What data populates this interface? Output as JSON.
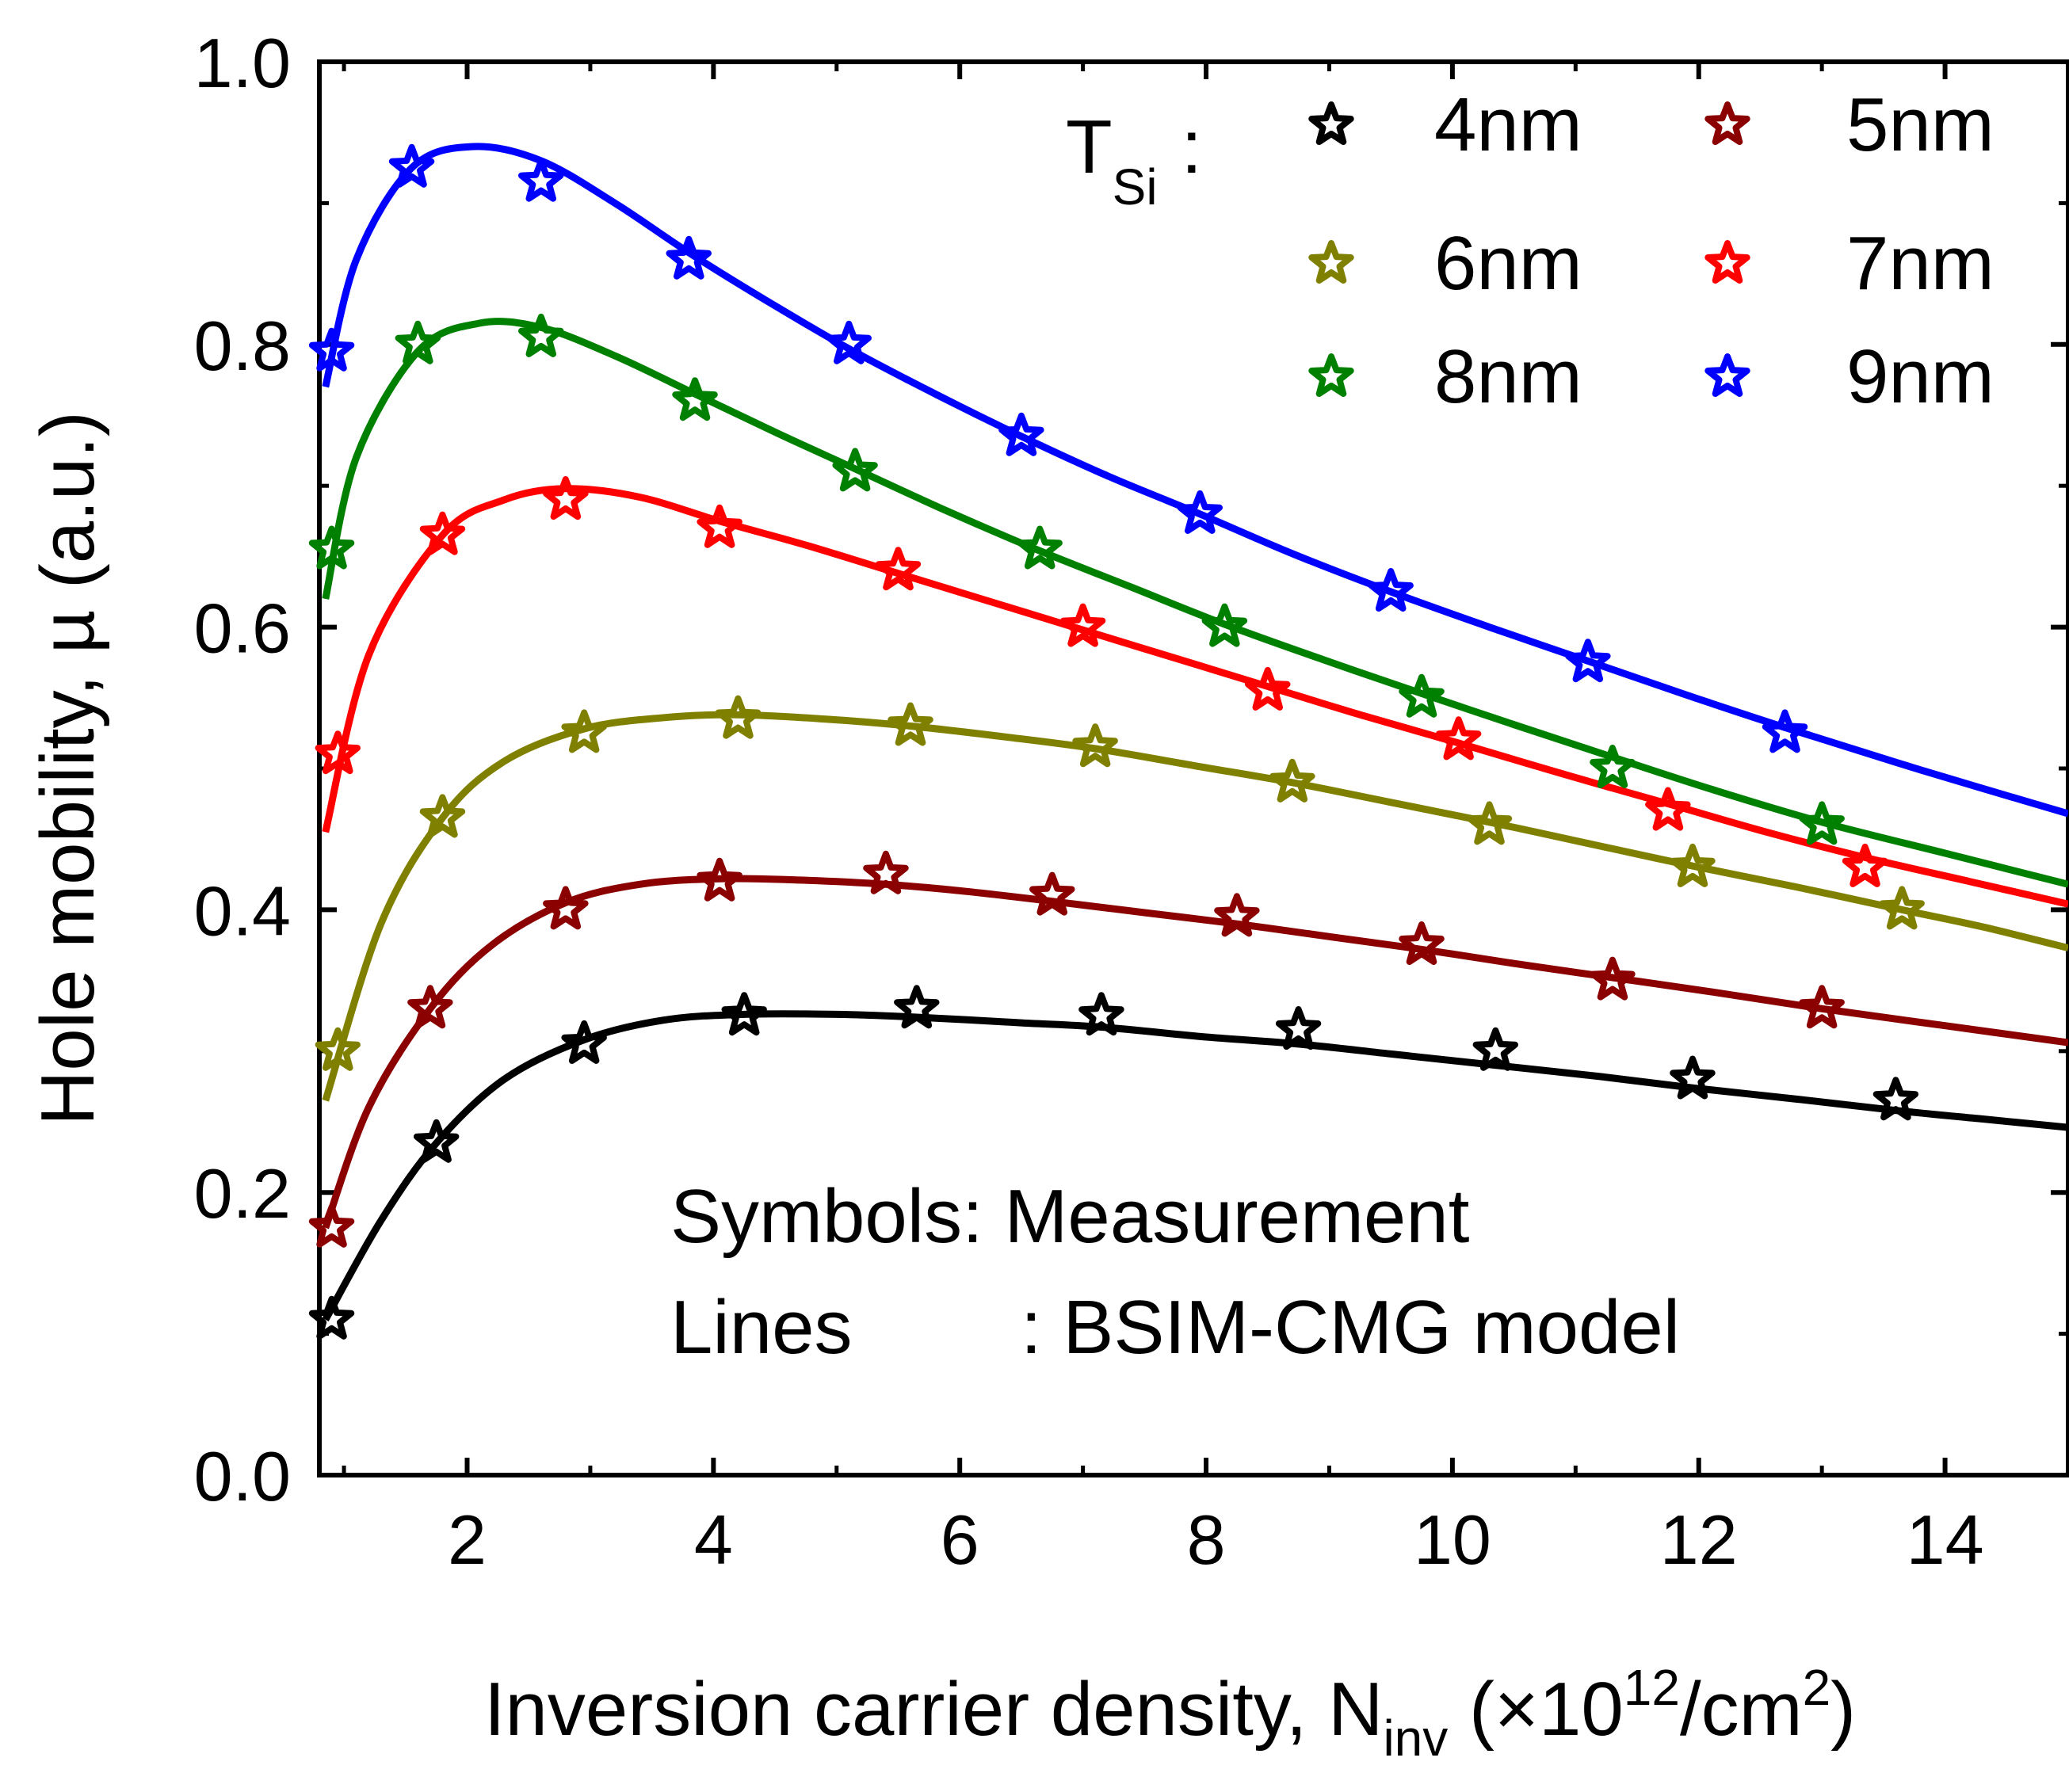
{
  "chart_data": {
    "type": "line",
    "xlabel": {
      "main": "Inversion carrier density, N",
      "sub": "inv",
      "tail1": " (×10",
      "sup1": "12",
      "tail2": "/cm",
      "sup2": "2",
      "tail3": ")"
    },
    "ylabel": "Hole mobility, µ (a.u.)",
    "xlim": [
      0.8,
      15.0
    ],
    "ylim": [
      0.0,
      1.0
    ],
    "xticks": [
      "2",
      "4",
      "6",
      "8",
      "10",
      "12",
      "14"
    ],
    "yticks": [
      "0.0",
      "0.2",
      "0.4",
      "0.6",
      "0.8",
      "1.0"
    ],
    "legend": {
      "title_main": "T",
      "title_sub": "Si",
      "title_colon": ":",
      "placement": "top-right"
    },
    "annotations": {
      "line1": "Symbols: Measurement",
      "line2_label": "Lines",
      "line2_value": ": BSIM-CMG model"
    },
    "series": [
      {
        "name": "4nm",
        "color": "#000000",
        "markers": [
          [
            0.9,
            0.11
          ],
          [
            1.75,
            0.235
          ],
          [
            2.95,
            0.305
          ],
          [
            4.25,
            0.325
          ],
          [
            5.65,
            0.33
          ],
          [
            7.15,
            0.325
          ],
          [
            8.75,
            0.315
          ],
          [
            10.35,
            0.3
          ],
          [
            11.95,
            0.28
          ],
          [
            13.6,
            0.265
          ]
        ],
        "curve": [
          [
            0.85,
            0.11
          ],
          [
            1.3,
            0.18
          ],
          [
            1.75,
            0.235
          ],
          [
            2.3,
            0.28
          ],
          [
            2.95,
            0.308
          ],
          [
            3.6,
            0.322
          ],
          [
            4.25,
            0.326
          ],
          [
            5.0,
            0.326
          ],
          [
            5.65,
            0.324
          ],
          [
            6.5,
            0.32
          ],
          [
            7.15,
            0.317
          ],
          [
            8.0,
            0.31
          ],
          [
            8.75,
            0.305
          ],
          [
            9.5,
            0.298
          ],
          [
            10.35,
            0.29
          ],
          [
            11.2,
            0.282
          ],
          [
            11.95,
            0.274
          ],
          [
            12.8,
            0.266
          ],
          [
            13.6,
            0.258
          ],
          [
            14.3,
            0.252
          ],
          [
            15.0,
            0.246
          ]
        ]
      },
      {
        "name": "5nm",
        "color": "#8b0000",
        "markers": [
          [
            0.9,
            0.175
          ],
          [
            1.7,
            0.33
          ],
          [
            2.8,
            0.4
          ],
          [
            4.05,
            0.42
          ],
          [
            5.4,
            0.425
          ],
          [
            6.75,
            0.41
          ],
          [
            8.25,
            0.395
          ],
          [
            9.75,
            0.375
          ],
          [
            11.3,
            0.35
          ],
          [
            13.0,
            0.33
          ]
        ],
        "curve": [
          [
            0.85,
            0.175
          ],
          [
            1.2,
            0.26
          ],
          [
            1.7,
            0.33
          ],
          [
            2.2,
            0.375
          ],
          [
            2.8,
            0.405
          ],
          [
            3.4,
            0.418
          ],
          [
            4.05,
            0.422
          ],
          [
            4.7,
            0.421
          ],
          [
            5.4,
            0.418
          ],
          [
            6.05,
            0.413
          ],
          [
            6.75,
            0.406
          ],
          [
            7.5,
            0.398
          ],
          [
            8.25,
            0.39
          ],
          [
            9.0,
            0.381
          ],
          [
            9.75,
            0.372
          ],
          [
            10.5,
            0.362
          ],
          [
            11.3,
            0.352
          ],
          [
            12.1,
            0.342
          ],
          [
            13.0,
            0.33
          ],
          [
            14.0,
            0.318
          ],
          [
            15.0,
            0.306
          ]
        ]
      },
      {
        "name": "6nm",
        "color": "#808000",
        "markers": [
          [
            0.95,
            0.3
          ],
          [
            1.8,
            0.465
          ],
          [
            2.95,
            0.525
          ],
          [
            4.2,
            0.535
          ],
          [
            5.6,
            0.53
          ],
          [
            7.1,
            0.515
          ],
          [
            8.7,
            0.49
          ],
          [
            10.3,
            0.46
          ],
          [
            11.95,
            0.43
          ],
          [
            13.65,
            0.4
          ]
        ],
        "curve": [
          [
            0.85,
            0.265
          ],
          [
            1.3,
            0.39
          ],
          [
            1.8,
            0.465
          ],
          [
            2.3,
            0.505
          ],
          [
            2.95,
            0.528
          ],
          [
            3.6,
            0.536
          ],
          [
            4.2,
            0.538
          ],
          [
            4.9,
            0.535
          ],
          [
            5.6,
            0.53
          ],
          [
            6.4,
            0.522
          ],
          [
            7.1,
            0.514
          ],
          [
            7.9,
            0.502
          ],
          [
            8.7,
            0.49
          ],
          [
            9.5,
            0.476
          ],
          [
            10.3,
            0.462
          ],
          [
            11.1,
            0.447
          ],
          [
            11.95,
            0.431
          ],
          [
            12.8,
            0.416
          ],
          [
            13.65,
            0.4
          ],
          [
            14.3,
            0.388
          ],
          [
            15.0,
            0.373
          ]
        ]
      },
      {
        "name": "7nm",
        "color": "#ff0000",
        "markers": [
          [
            0.95,
            0.51
          ],
          [
            1.8,
            0.665
          ],
          [
            2.8,
            0.69
          ],
          [
            4.05,
            0.67
          ],
          [
            5.5,
            0.64
          ],
          [
            7.0,
            0.6
          ],
          [
            8.5,
            0.555
          ],
          [
            10.05,
            0.52
          ],
          [
            11.75,
            0.47
          ],
          [
            13.35,
            0.43
          ]
        ],
        "curve": [
          [
            0.85,
            0.455
          ],
          [
            1.2,
            0.58
          ],
          [
            1.8,
            0.665
          ],
          [
            2.3,
            0.69
          ],
          [
            2.8,
            0.698
          ],
          [
            3.4,
            0.692
          ],
          [
            4.05,
            0.675
          ],
          [
            4.75,
            0.658
          ],
          [
            5.5,
            0.638
          ],
          [
            6.25,
            0.618
          ],
          [
            7.0,
            0.598
          ],
          [
            7.75,
            0.578
          ],
          [
            8.5,
            0.558
          ],
          [
            9.25,
            0.538
          ],
          [
            10.05,
            0.518
          ],
          [
            10.9,
            0.496
          ],
          [
            11.75,
            0.475
          ],
          [
            12.55,
            0.455
          ],
          [
            13.35,
            0.437
          ],
          [
            14.2,
            0.42
          ],
          [
            15.0,
            0.404
          ]
        ]
      },
      {
        "name": "8nm",
        "color": "#008000",
        "markers": [
          [
            0.9,
            0.655
          ],
          [
            1.6,
            0.8
          ],
          [
            2.6,
            0.805
          ],
          [
            3.85,
            0.76
          ],
          [
            5.15,
            0.71
          ],
          [
            6.65,
            0.655
          ],
          [
            8.15,
            0.6
          ],
          [
            9.75,
            0.55
          ],
          [
            11.3,
            0.5
          ],
          [
            13.0,
            0.46
          ]
        ],
        "curve": [
          [
            0.85,
            0.62
          ],
          [
            1.1,
            0.72
          ],
          [
            1.6,
            0.795
          ],
          [
            2.1,
            0.815
          ],
          [
            2.6,
            0.812
          ],
          [
            3.2,
            0.792
          ],
          [
            3.85,
            0.765
          ],
          [
            4.5,
            0.738
          ],
          [
            5.15,
            0.712
          ],
          [
            5.9,
            0.682
          ],
          [
            6.65,
            0.654
          ],
          [
            7.4,
            0.628
          ],
          [
            8.15,
            0.602
          ],
          [
            8.95,
            0.577
          ],
          [
            9.75,
            0.553
          ],
          [
            10.5,
            0.531
          ],
          [
            11.3,
            0.508
          ],
          [
            12.15,
            0.484
          ],
          [
            13.0,
            0.462
          ],
          [
            14.0,
            0.44
          ],
          [
            15.0,
            0.418
          ]
        ]
      },
      {
        "name": "9nm",
        "color": "#0000ff",
        "markers": [
          [
            0.9,
            0.795
          ],
          [
            1.55,
            0.925
          ],
          [
            2.6,
            0.915
          ],
          [
            3.8,
            0.86
          ],
          [
            5.1,
            0.8
          ],
          [
            6.5,
            0.735
          ],
          [
            7.95,
            0.68
          ],
          [
            9.5,
            0.625
          ],
          [
            11.1,
            0.575
          ],
          [
            12.7,
            0.525
          ]
        ],
        "curve": [
          [
            0.85,
            0.77
          ],
          [
            1.1,
            0.86
          ],
          [
            1.55,
            0.925
          ],
          [
            2.05,
            0.94
          ],
          [
            2.6,
            0.93
          ],
          [
            3.2,
            0.9
          ],
          [
            3.8,
            0.865
          ],
          [
            4.45,
            0.83
          ],
          [
            5.1,
            0.797
          ],
          [
            5.8,
            0.765
          ],
          [
            6.5,
            0.735
          ],
          [
            7.2,
            0.707
          ],
          [
            7.95,
            0.68
          ],
          [
            8.7,
            0.652
          ],
          [
            9.5,
            0.625
          ],
          [
            10.3,
            0.6
          ],
          [
            11.1,
            0.576
          ],
          [
            11.9,
            0.552
          ],
          [
            12.7,
            0.529
          ],
          [
            13.8,
            0.499
          ],
          [
            15.0,
            0.468
          ]
        ]
      }
    ]
  }
}
